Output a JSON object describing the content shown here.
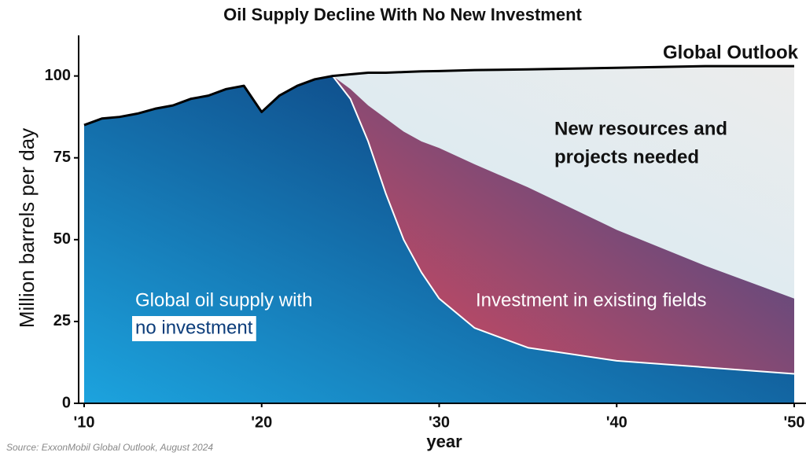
{
  "chart_data": {
    "type": "area",
    "title": "Oil Supply Decline With No New Investment",
    "y_label": "Million barrels per day",
    "x_label": "year",
    "source": "Source: ExxonMobil Global Outlook, August 2024",
    "annotation": [
      "New resources and",
      "projects needed"
    ],
    "x": [
      2010,
      2011,
      2012,
      2013,
      2014,
      2015,
      2016,
      2017,
      2018,
      2019,
      2020,
      2021,
      2022,
      2023,
      2024,
      2025,
      2026,
      2027,
      2028,
      2029,
      2030,
      2032,
      2035,
      2040,
      2045,
      2050
    ],
    "series": [
      {
        "name": "Global Outlook",
        "colors": [
          "#c9e9f8",
          "#ececec"
        ],
        "line_color": "#000000",
        "values": [
          85,
          87,
          87.5,
          88.5,
          90,
          91,
          93,
          94,
          96,
          97,
          89,
          94,
          97,
          99,
          100,
          100.5,
          101,
          101,
          101.2,
          101.4,
          101.5,
          101.8,
          102,
          102.5,
          103,
          103
        ]
      },
      {
        "name": "Investment in existing fields",
        "colors": [
          "#e2485a",
          "#2f4c8c"
        ],
        "values": [
          null,
          null,
          null,
          null,
          null,
          null,
          null,
          null,
          null,
          null,
          null,
          null,
          null,
          null,
          100,
          96,
          91,
          87,
          83,
          80,
          78,
          73,
          66,
          53,
          42,
          32
        ]
      },
      {
        "name": [
          "Global oil supply with",
          "no investment"
        ],
        "colors": [
          "#1ca3de",
          "#0a2a68"
        ],
        "line_color": "#ffffff",
        "values": [
          85,
          87,
          87.5,
          88.5,
          90,
          91,
          93,
          94,
          96,
          97,
          89,
          94,
          97,
          99,
          100,
          93,
          80,
          64,
          50,
          40,
          32,
          23,
          17,
          13,
          11,
          9
        ]
      }
    ],
    "xlim": [
      2010,
      2050
    ],
    "xticks": [
      {
        "value": 2010,
        "label": "'10"
      },
      {
        "value": 2020,
        "label": "'20"
      },
      {
        "value": 2030,
        "label": "'30"
      },
      {
        "value": 2040,
        "label": "'40"
      },
      {
        "value": 2050,
        "label": "'50"
      }
    ],
    "ylim": [
      0,
      110
    ],
    "yticks": [
      0,
      25,
      50,
      75,
      100
    ]
  }
}
